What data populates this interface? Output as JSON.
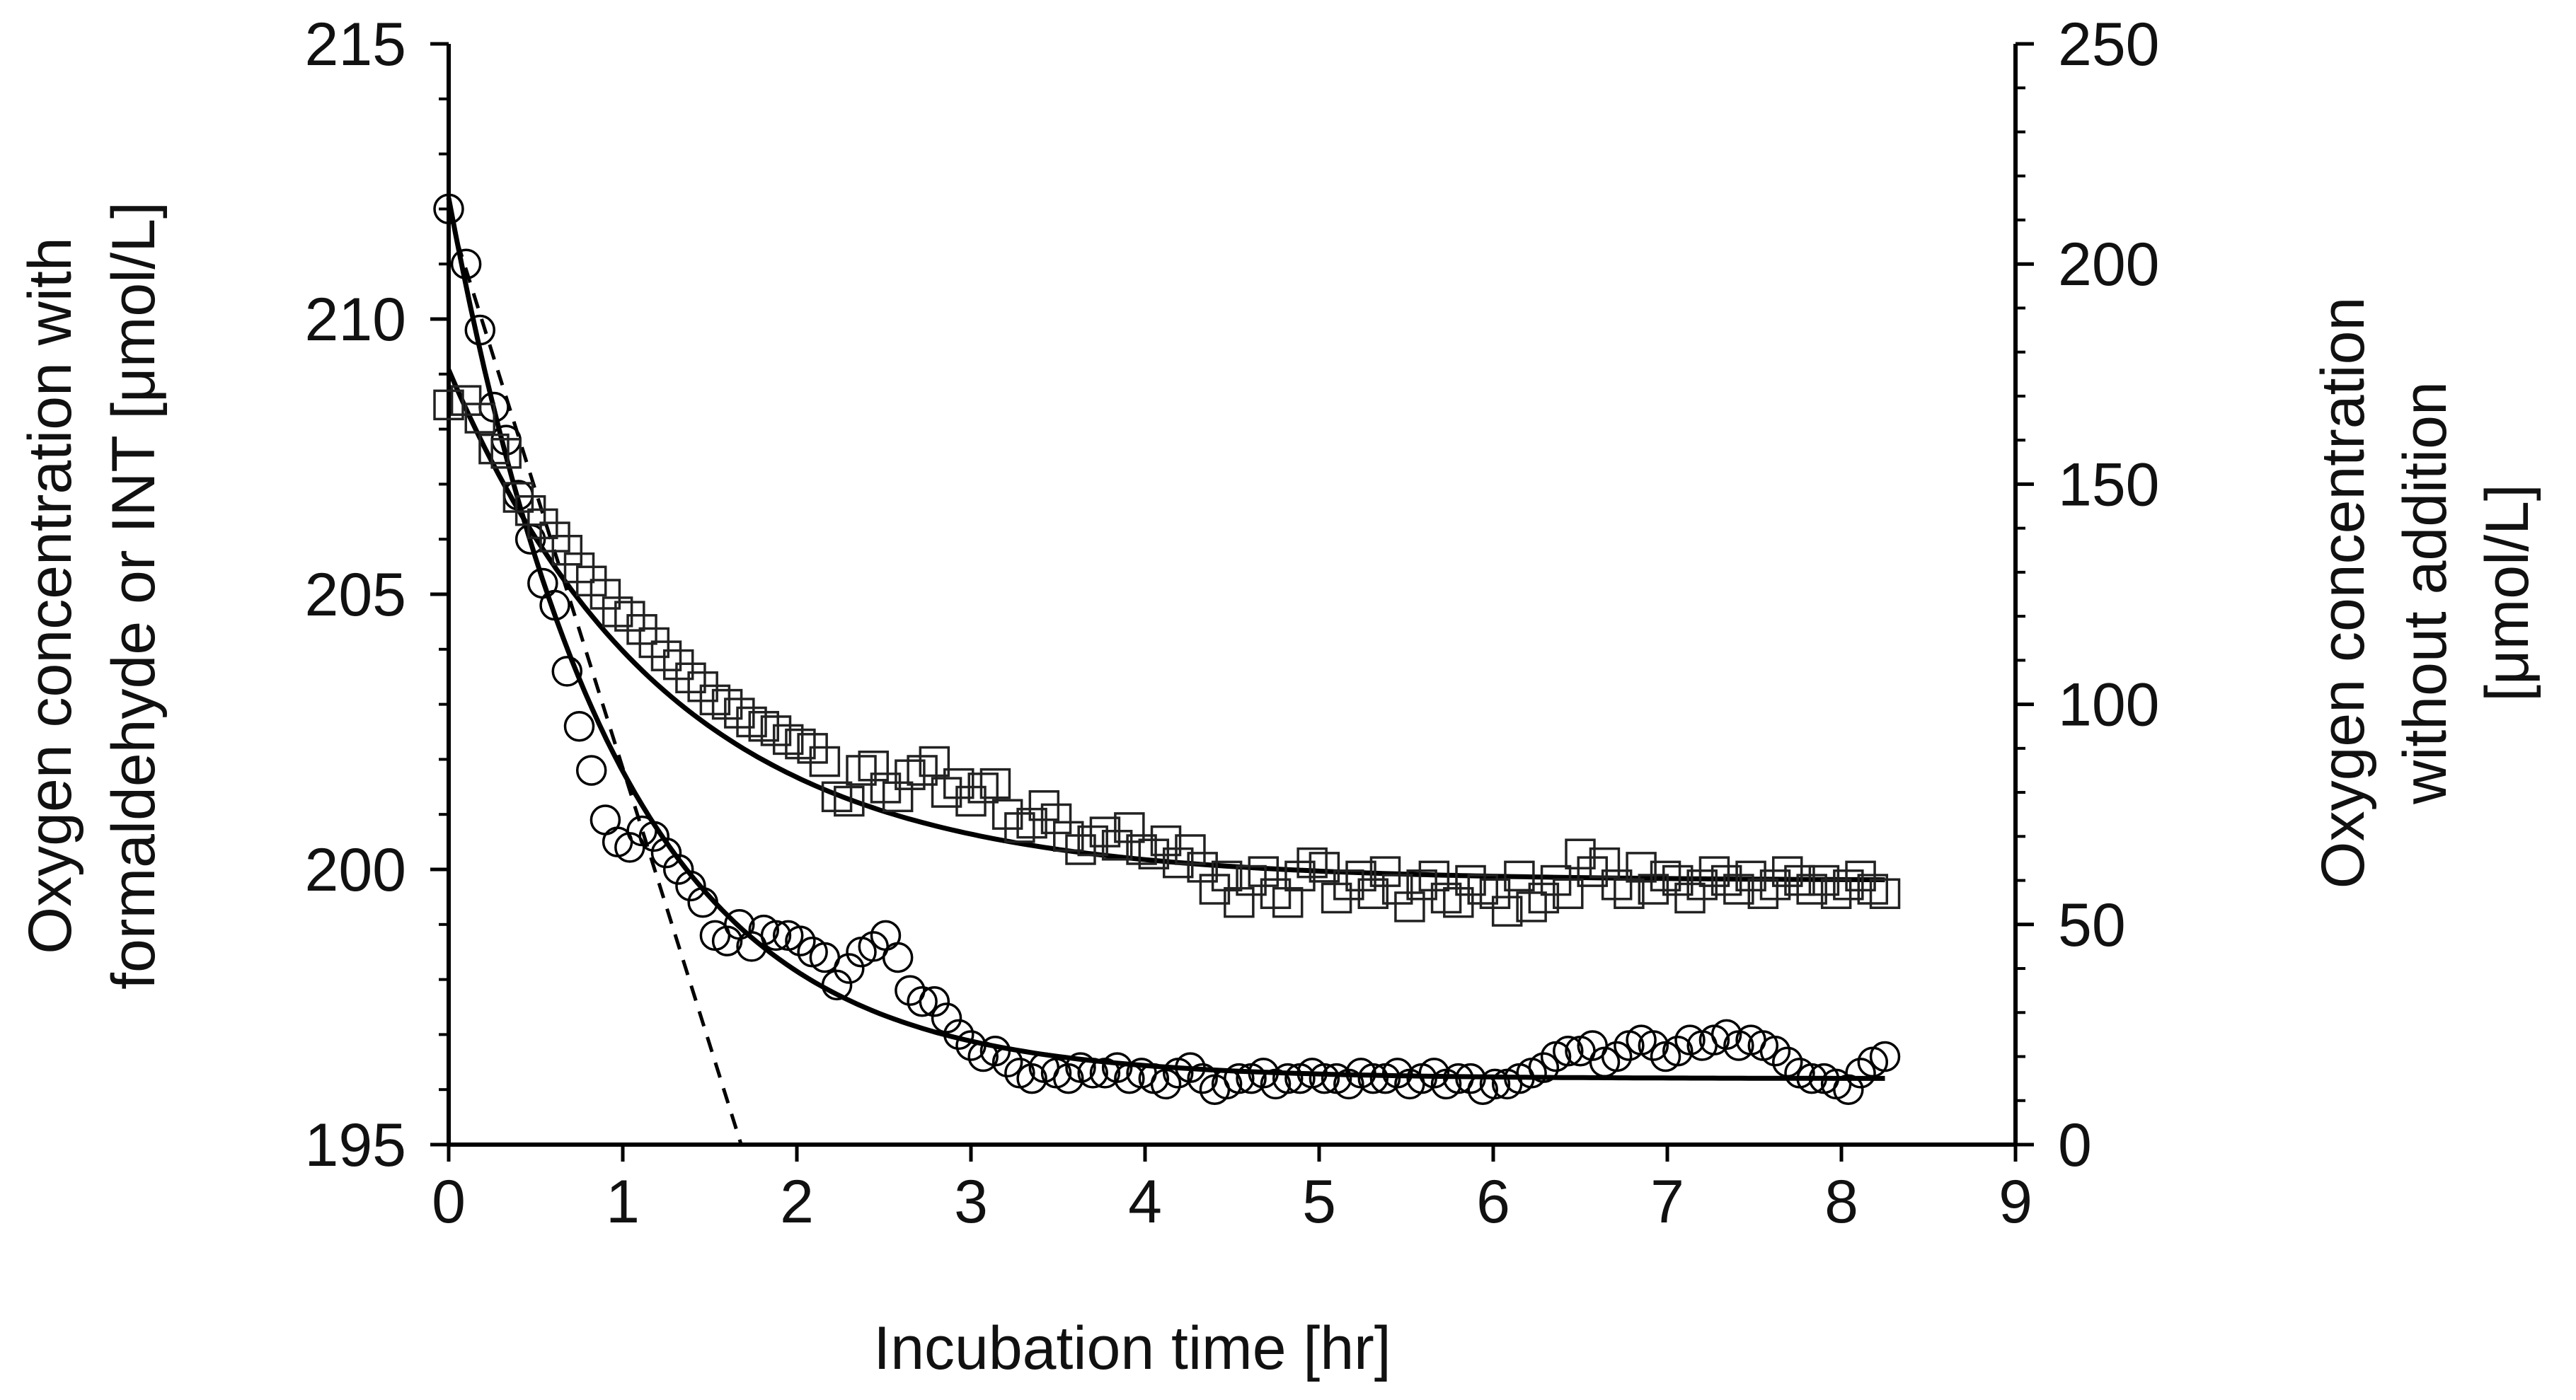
{
  "chart_data": {
    "type": "scatter",
    "x_axis": {
      "label": "Incubation time [hr]",
      "range": [
        0,
        9
      ],
      "ticks": [
        0,
        1,
        2,
        3,
        4,
        5,
        6,
        7,
        8,
        9
      ]
    },
    "y_axis_left": {
      "label_line1": "Oxygen concentration with",
      "label_line2": "formaldehyde or INT [μmol/L]",
      "range": [
        195,
        215
      ],
      "ticks": [
        195,
        200,
        205,
        210,
        215
      ]
    },
    "y_axis_right": {
      "label_line1": "Oxygen concentration",
      "label_line2": "without addition",
      "label_line3": "[μmol/L]",
      "range": [
        0,
        250
      ],
      "ticks": [
        0,
        50,
        100,
        150,
        200,
        250
      ]
    },
    "series": [
      {
        "name": "with formaldehyde or INT",
        "marker": "circle",
        "axis": "left",
        "x": [
          0.0,
          0.1,
          0.18,
          0.26,
          0.33,
          0.4,
          0.47,
          0.54,
          0.61,
          0.68,
          0.75,
          0.82,
          0.9,
          0.97,
          1.04,
          1.11,
          1.18,
          1.25,
          1.32,
          1.39,
          1.46,
          1.53,
          1.6,
          1.67,
          1.74,
          1.81,
          1.88,
          1.95,
          2.02,
          2.09,
          2.16,
          2.23,
          2.3,
          2.37,
          2.44,
          2.51,
          2.58,
          2.65,
          2.72,
          2.79,
          2.86,
          2.93,
          3.0,
          3.07,
          3.14,
          3.21,
          3.28,
          3.35,
          3.42,
          3.49,
          3.56,
          3.63,
          3.7,
          3.77,
          3.84,
          3.91,
          3.98,
          4.05,
          4.12,
          4.19,
          4.26,
          4.33,
          4.4,
          4.47,
          4.54,
          4.61,
          4.68,
          4.75,
          4.82,
          4.89,
          4.96,
          5.03,
          5.1,
          5.17,
          5.24,
          5.31,
          5.38,
          5.45,
          5.52,
          5.59,
          5.66,
          5.73,
          5.8,
          5.87,
          5.94,
          6.01,
          6.08,
          6.15,
          6.22,
          6.29,
          6.36,
          6.43,
          6.5,
          6.57,
          6.64,
          6.71,
          6.78,
          6.85,
          6.92,
          6.99,
          7.06,
          7.13,
          7.2,
          7.27,
          7.34,
          7.41,
          7.48,
          7.55,
          7.62,
          7.69,
          7.76,
          7.83,
          7.9,
          7.97,
          8.04,
          8.11,
          8.18,
          8.25
        ],
        "y": [
          212.0,
          211.0,
          209.8,
          208.4,
          207.8,
          206.8,
          206.0,
          205.2,
          204.8,
          203.6,
          202.6,
          201.8,
          200.9,
          200.5,
          200.4,
          200.7,
          200.6,
          200.3,
          200.0,
          199.7,
          199.4,
          198.8,
          198.7,
          199.0,
          198.6,
          198.9,
          198.8,
          198.8,
          198.7,
          198.5,
          198.4,
          197.9,
          198.2,
          198.5,
          198.6,
          198.8,
          198.4,
          197.8,
          197.6,
          197.6,
          197.3,
          197.0,
          196.8,
          196.6,
          196.7,
          196.5,
          196.3,
          196.2,
          196.4,
          196.3,
          196.2,
          196.4,
          196.3,
          196.3,
          196.4,
          196.2,
          196.3,
          196.2,
          196.1,
          196.3,
          196.4,
          196.2,
          196.0,
          196.1,
          196.2,
          196.2,
          196.3,
          196.1,
          196.2,
          196.2,
          196.3,
          196.2,
          196.2,
          196.1,
          196.3,
          196.2,
          196.2,
          196.3,
          196.1,
          196.2,
          196.3,
          196.1,
          196.2,
          196.2,
          196.0,
          196.1,
          196.1,
          196.2,
          196.3,
          196.4,
          196.6,
          196.7,
          196.7,
          196.8,
          196.5,
          196.6,
          196.8,
          196.9,
          196.8,
          196.6,
          196.7,
          196.9,
          196.8,
          196.9,
          197.0,
          196.8,
          196.9,
          196.8,
          196.7,
          196.5,
          196.3,
          196.2,
          196.2,
          196.1,
          196.0,
          196.3,
          196.5,
          196.6
        ]
      },
      {
        "name": "without addition",
        "marker": "square",
        "axis": "right",
        "x": [
          0.0,
          0.1,
          0.18,
          0.26,
          0.33,
          0.4,
          0.47,
          0.54,
          0.61,
          0.68,
          0.75,
          0.82,
          0.9,
          0.97,
          1.04,
          1.11,
          1.18,
          1.25,
          1.32,
          1.39,
          1.46,
          1.53,
          1.6,
          1.67,
          1.74,
          1.81,
          1.88,
          1.95,
          2.02,
          2.09,
          2.16,
          2.23,
          2.3,
          2.37,
          2.44,
          2.51,
          2.58,
          2.65,
          2.72,
          2.79,
          2.86,
          2.93,
          3.0,
          3.07,
          3.14,
          3.21,
          3.28,
          3.35,
          3.42,
          3.49,
          3.56,
          3.63,
          3.7,
          3.77,
          3.84,
          3.91,
          3.98,
          4.05,
          4.12,
          4.19,
          4.26,
          4.33,
          4.4,
          4.47,
          4.54,
          4.61,
          4.68,
          4.75,
          4.82,
          4.89,
          4.96,
          5.03,
          5.1,
          5.17,
          5.24,
          5.31,
          5.38,
          5.45,
          5.52,
          5.59,
          5.66,
          5.73,
          5.8,
          5.87,
          5.94,
          6.01,
          6.08,
          6.15,
          6.22,
          6.29,
          6.36,
          6.43,
          6.5,
          6.57,
          6.64,
          6.71,
          6.78,
          6.85,
          6.92,
          6.99,
          7.06,
          7.13,
          7.2,
          7.27,
          7.34,
          7.41,
          7.48,
          7.55,
          7.62,
          7.69,
          7.76,
          7.83,
          7.9,
          7.97,
          8.04,
          8.11,
          8.18,
          8.25
        ],
        "y": [
          168.0,
          169.0,
          165.0,
          158.0,
          157.0,
          147.0,
          144.0,
          141.0,
          138.0,
          135.0,
          131.0,
          128.0,
          125.0,
          121.0,
          120.0,
          117.0,
          114.0,
          111.0,
          109.0,
          106.0,
          104.0,
          101.0,
          100.0,
          98.0,
          96.0,
          95.0,
          94.0,
          92.0,
          91.0,
          90.0,
          87.0,
          79.0,
          78.0,
          85.0,
          86.0,
          81.0,
          79.0,
          84.0,
          85.0,
          87.0,
          80.0,
          82.0,
          78.0,
          81.0,
          82.0,
          75.0,
          72.0,
          73.0,
          77.0,
          74.0,
          70.0,
          67.0,
          69.0,
          71.0,
          68.0,
          72.0,
          67.0,
          66.0,
          69.0,
          64.0,
          67.0,
          63.0,
          58.0,
          61.0,
          55.0,
          60.0,
          62.0,
          57.0,
          55.0,
          61.0,
          64.0,
          63.0,
          56.0,
          59.0,
          61.0,
          57.0,
          62.0,
          58.0,
          54.0,
          59.0,
          61.0,
          56.0,
          55.0,
          60.0,
          58.0,
          57.0,
          53.0,
          61.0,
          54.0,
          56.0,
          60.0,
          57.0,
          66.0,
          62.0,
          64.0,
          59.0,
          57.0,
          63.0,
          58.0,
          61.0,
          60.0,
          56.0,
          59.0,
          62.0,
          60.0,
          58.0,
          61.0,
          57.0,
          59.0,
          62.0,
          60.0,
          58.0,
          60.0,
          57.0,
          59.0,
          61.0,
          58.0,
          57.0
        ]
      }
    ],
    "fits": [
      {
        "name": "with formaldehyde or INT fit",
        "axis": "left",
        "model": "exponential decay",
        "y0": 212.2,
        "y_inf": 196.2,
        "tau_hr": 0.95
      },
      {
        "name": "without addition fit",
        "axis": "right",
        "model": "exponential decay",
        "y0": 176.0,
        "y_inf": 60.0,
        "tau_hr": 1.25
      }
    ],
    "tangent": {
      "name": "initial slope (dashed)",
      "axis": "left",
      "x_start": 0.05,
      "y_start": 211.4,
      "x_end": 1.68,
      "y_end": 195.0
    }
  }
}
